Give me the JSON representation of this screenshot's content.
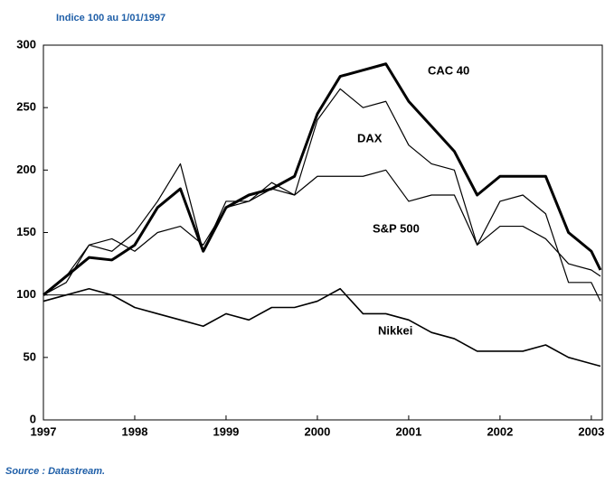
{
  "chart_data": {
    "type": "line",
    "title": "Indice 100 au 1/01/1997",
    "source": "Source : Datastream.",
    "x": [
      1997.0,
      1997.25,
      1997.5,
      1997.75,
      1998.0,
      1998.25,
      1998.5,
      1998.75,
      1999.0,
      1999.25,
      1999.5,
      1999.75,
      2000.0,
      2000.25,
      2000.5,
      2000.75,
      2001.0,
      2001.25,
      2001.5,
      2001.75,
      2002.0,
      2002.25,
      2002.5,
      2002.75,
      2003.0,
      2003.1
    ],
    "series": [
      {
        "name": "CAC 40",
        "color": "#000000",
        "width": 3,
        "values": [
          100,
          115,
          130,
          128,
          140,
          170,
          185,
          135,
          170,
          180,
          185,
          195,
          245,
          275,
          280,
          285,
          255,
          235,
          215,
          180,
          195,
          195,
          195,
          150,
          135,
          120
        ]
      },
      {
        "name": "DAX",
        "color": "#000000",
        "width": 1.2,
        "values": [
          100,
          115,
          140,
          135,
          150,
          175,
          205,
          135,
          175,
          175,
          190,
          180,
          240,
          265,
          250,
          255,
          220,
          205,
          200,
          140,
          175,
          180,
          165,
          110,
          110,
          95
        ]
      },
      {
        "name": "S&P 500",
        "color": "#000000",
        "width": 1.2,
        "values": [
          100,
          110,
          140,
          145,
          135,
          150,
          155,
          140,
          170,
          175,
          185,
          180,
          195,
          195,
          195,
          200,
          175,
          180,
          180,
          140,
          155,
          155,
          145,
          125,
          120,
          115
        ]
      },
      {
        "name": "Nikkei",
        "color": "#000000",
        "width": 1.6,
        "values": [
          95,
          100,
          105,
          100,
          90,
          85,
          80,
          75,
          85,
          80,
          90,
          90,
          95,
          105,
          85,
          85,
          80,
          70,
          65,
          55,
          55,
          55,
          60,
          50,
          45,
          43
        ]
      }
    ],
    "hline": 100,
    "xlim": [
      1997,
      2003.12
    ],
    "xticks": [
      1997,
      1998,
      1999,
      2000,
      2001,
      2002,
      2003
    ],
    "ylim": [
      0,
      300
    ],
    "yticks": [
      0,
      50,
      100,
      150,
      200,
      250,
      300
    ]
  }
}
